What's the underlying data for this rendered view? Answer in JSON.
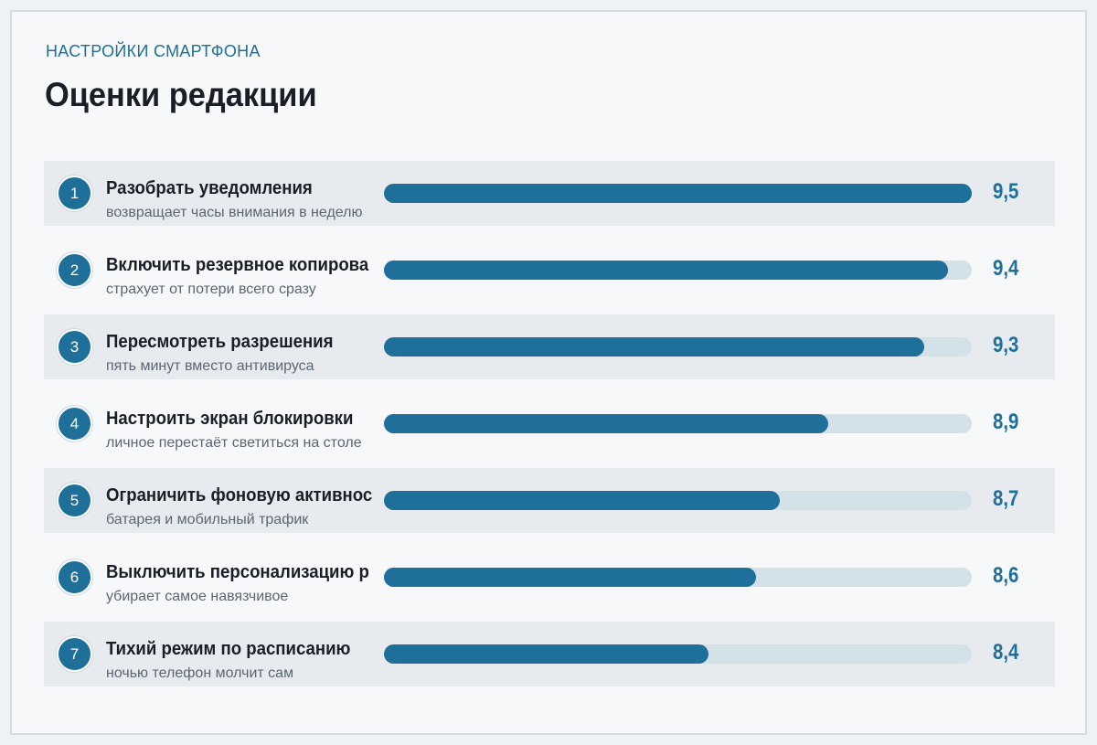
{
  "header": {
    "eyebrow": "НАСТРОЙКИ СМАРТФОНА",
    "title": "Оценки редакции"
  },
  "colors": {
    "accent": "#1e6f99",
    "track": "#d3e1e8",
    "row_shade": "#e7ebf0"
  },
  "chart_data": {
    "type": "bar",
    "orientation": "horizontal",
    "title": "Оценки редакции",
    "xlim": [
      0,
      9.5
    ],
    "categories": [
      "Разобрать уведомления",
      "Включить резервное копирова",
      "Пересмотреть разрешения",
      "Настроить экран блокировки",
      "Ограничить фоновую активнос",
      "Выключить персонализацию р",
      "Тихий режим по расписанию"
    ],
    "values": [
      9.5,
      9.4,
      9.3,
      8.9,
      8.7,
      8.6,
      8.4
    ],
    "rows": [
      {
        "rank": "1",
        "label": "Разобрать уведомления",
        "sub": "возвращает часы внимания в неделю",
        "score": "9,5",
        "value": 9.5
      },
      {
        "rank": "2",
        "label": "Включить резервное копирова",
        "sub": "страхует от потери всего сразу",
        "score": "9,4",
        "value": 9.4
      },
      {
        "rank": "3",
        "label": "Пересмотреть разрешения",
        "sub": "пять минут вместо антивируса",
        "score": "9,3",
        "value": 9.3
      },
      {
        "rank": "4",
        "label": "Настроить экран блокировки",
        "sub": "личное перестаёт светиться на столе",
        "score": "8,9",
        "value": 8.9
      },
      {
        "rank": "5",
        "label": "Ограничить фоновую активнос",
        "sub": "батарея и мобильный трафик",
        "score": "8,7",
        "value": 8.7
      },
      {
        "rank": "6",
        "label": "Выключить персонализацию р",
        "sub": "убирает самое навязчивое",
        "score": "8,6",
        "value": 8.6
      },
      {
        "rank": "7",
        "label": "Тихий режим по расписанию",
        "sub": "ночью телефон молчит сам",
        "score": "8,4",
        "value": 8.4
      }
    ]
  }
}
